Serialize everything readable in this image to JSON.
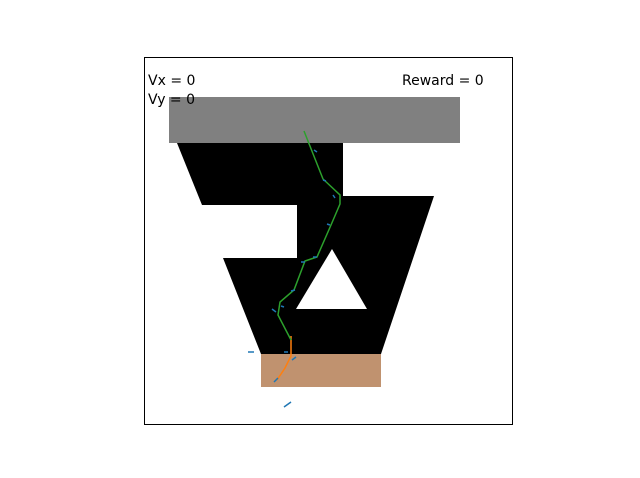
{
  "hud": {
    "vx_text": "Vx = 0",
    "vy_text": "Vy = 0",
    "reward_text": "Reward = 0"
  },
  "colors": {
    "background": "#ffffff",
    "frame": "#000000",
    "track": "#000000",
    "start_zone": "#808080",
    "finish_zone": "#c0926f",
    "obstacle": "#ffffff",
    "path_primary": "#2ca02c",
    "path_secondary": "#ff7f0e",
    "velocity_markers": "#1f77b4"
  }
}
